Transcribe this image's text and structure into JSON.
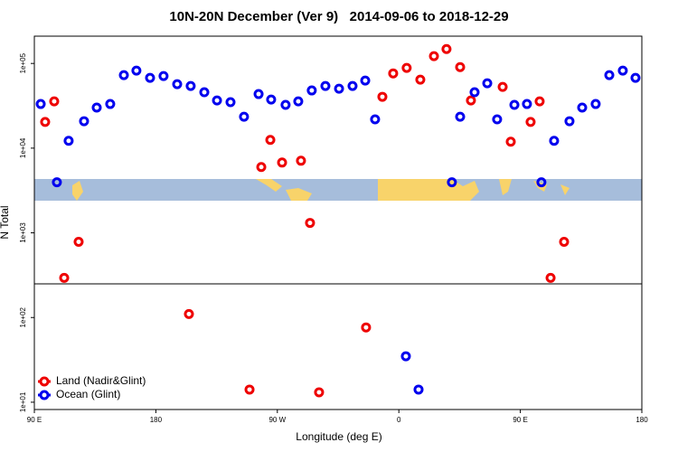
{
  "chart_data": {
    "type": "scatter",
    "title": "10N-20N December (Ver 9)   2014-09-06 to 2018-12-29",
    "x_label": "Longitude (deg E)",
    "y_label": "N Total",
    "xlim": [
      90,
      540
    ],
    "ylim": [
      8.2,
      210000
    ],
    "ylog": true,
    "xticks": [
      {
        "value": 90,
        "label": "90 E"
      },
      180,
      {
        "value": 270,
        "label": "90 W"
      },
      {
        "value": 360,
        "label": "0"
      },
      {
        "value": 450,
        "label": "90 E"
      },
      {
        "value": 540,
        "label": "180"
      }
    ],
    "yticks": [
      {
        "value": 10,
        "label": "1e+01"
      },
      {
        "value": 100,
        "label": "1e+02"
      },
      {
        "value": 1000,
        "label": "1e+03"
      },
      {
        "value": 10000,
        "label": "1e+04"
      },
      {
        "value": 100000,
        "label": "1e+05"
      }
    ],
    "hline": 250,
    "legend": "bottomleft",
    "series": [
      {
        "name": "Land (Nadir&Glint)",
        "color": "#ee0000",
        "x": [
          98.0,
          104.7,
          112.1,
          122.8,
          204.5,
          249.4,
          258.1,
          264.8,
          273.5,
          287.5,
          294.2,
          300.9,
          335.7,
          347.8,
          355.8,
          365.8,
          375.9,
          386.0,
          395.3,
          405.4,
          413.4,
          436.9,
          442.9,
          457.6,
          464.3,
          472.4,
          482.4
        ],
        "values": [
          20400,
          35700,
          294,
          783,
          110,
          14.1,
          5980,
          12500,
          6760,
          7100,
          1310,
          13.1,
          76.4,
          40400,
          76300,
          88500,
          64400,
          122000,
          148000,
          90600,
          36600,
          52800,
          11900,
          20400,
          35700,
          294,
          783
        ]
      },
      {
        "name": "Ocean (Glint)",
        "color": "#0000ee",
        "x": [
          94.7,
          106.7,
          115.4,
          126.8,
          136.2,
          146.2,
          156.3,
          165.6,
          175.7,
          185.7,
          195.8,
          205.8,
          215.9,
          225.3,
          235.3,
          245.3,
          256.1,
          265.4,
          276.1,
          285.5,
          295.5,
          305.6,
          315.7,
          325.7,
          335.1,
          342.4,
          365.2,
          374.6,
          399.3,
          405.4,
          416.1,
          425.5,
          432.8,
          445.6,
          454.9,
          465.6,
          475.0,
          486.4,
          495.8,
          505.8,
          515.9,
          525.9,
          535.3
        ],
        "values": [
          33200,
          3950,
          12200,
          20800,
          30100,
          33200,
          72800,
          82200,
          67600,
          71000,
          56900,
          54200,
          45700,
          36600,
          34900,
          23500,
          43500,
          37500,
          32400,
          35700,
          48000,
          54200,
          50300,
          54200,
          62800,
          21900,
          34.9,
          14.1,
          3950,
          23500,
          45700,
          58300,
          21900,
          32400,
          33200,
          3950,
          12200,
          20800,
          30100,
          33200,
          72800,
          82200,
          67600
        ]
      }
    ]
  }
}
